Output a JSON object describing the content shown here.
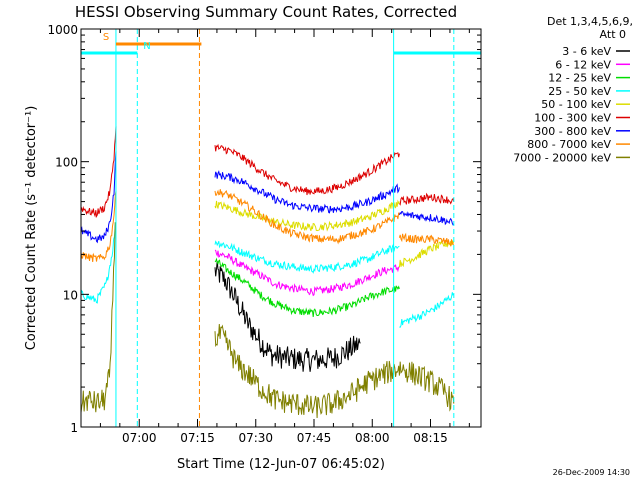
{
  "stamp": "26-Dec-2009 14:30",
  "legend": {
    "header_lines": [
      "Det 1,3,4,5,6,9,",
      "Att 0"
    ]
  },
  "chart_data": {
    "type": "line",
    "title": "HESSI Observing Summary Count Rates, Corrected",
    "xlabel": "Start Time (12-Jun-07 06:45:02)",
    "ylabel": "Corrected Count Rate (s⁻¹ detector⁻¹)",
    "x_units": "minutes after 06:45:02",
    "xlim": [
      0,
      103
    ],
    "ylim": [
      1,
      1000
    ],
    "y_scale": "log",
    "x_ticks": [
      {
        "x": 15,
        "label": "07:00"
      },
      {
        "x": 30,
        "label": "07:15"
      },
      {
        "x": 45,
        "label": "07:30"
      },
      {
        "x": 60,
        "label": "07:45"
      },
      {
        "x": 75,
        "label": "08:00"
      },
      {
        "x": 90,
        "label": "08:15"
      }
    ],
    "y_ticks": [
      {
        "y": 1,
        "label": "1"
      },
      {
        "y": 10,
        "label": "10"
      },
      {
        "y": 100,
        "label": "100"
      },
      {
        "y": 1000,
        "label": "1000"
      }
    ],
    "legend_position": "right",
    "series": [
      {
        "name": "3 - 6 keV",
        "color": "#000000",
        "segments": [
          [
            [
              34.5,
              15
            ],
            [
              37,
              13
            ],
            [
              40,
              9
            ],
            [
              43,
              6
            ],
            [
              46,
              4.5
            ],
            [
              49,
              3.5
            ],
            [
              53,
              3.3
            ],
            [
              57,
              3.2
            ],
            [
              61,
              3.2
            ],
            [
              65,
              3.3
            ],
            [
              69,
              3.8
            ],
            [
              72,
              4.3
            ]
          ]
        ]
      },
      {
        "name": "6 - 12 keV",
        "color": "#ff00ff",
        "segments": [
          [
            [
              34.5,
              21
            ],
            [
              38,
              19
            ],
            [
              42,
              16
            ],
            [
              46,
              14
            ],
            [
              50,
              12
            ],
            [
              55,
              11
            ],
            [
              60,
              10.5
            ],
            [
              65,
              11
            ],
            [
              70,
              12
            ],
            [
              74,
              13.5
            ],
            [
              78,
              15
            ],
            [
              82,
              16
            ]
          ]
        ]
      },
      {
        "name": "12 - 25 keV",
        "color": "#00dd00",
        "segments": [
          [
            [
              34.5,
              18
            ],
            [
              38,
              15
            ],
            [
              42,
              12.5
            ],
            [
              46,
              10
            ],
            [
              50,
              8.5
            ],
            [
              55,
              7.5
            ],
            [
              60,
              7.2
            ],
            [
              65,
              7.5
            ],
            [
              70,
              8.3
            ],
            [
              74,
              9.5
            ],
            [
              78,
              10.5
            ],
            [
              82,
              11
            ]
          ]
        ]
      },
      {
        "name": "25 - 50 keV",
        "color": "#00ffff",
        "segments": [
          [
            [
              0,
              10
            ],
            [
              4,
              9
            ],
            [
              6.5,
              12
            ],
            [
              8,
              20
            ],
            [
              9,
              35
            ]
          ],
          [
            [
              34.5,
              25
            ],
            [
              38,
              23
            ],
            [
              42,
              20.5
            ],
            [
              46,
              18.5
            ],
            [
              50,
              17
            ],
            [
              55,
              16
            ],
            [
              60,
              15.5
            ],
            [
              65,
              16
            ],
            [
              70,
              17
            ],
            [
              74,
              18.5
            ],
            [
              78,
              21
            ],
            [
              82,
              23
            ]
          ],
          [
            [
              82,
              6
            ],
            [
              85,
              6.5
            ],
            [
              88,
              7
            ],
            [
              91,
              7.8
            ],
            [
              94,
              9
            ],
            [
              96,
              10
            ]
          ]
        ]
      },
      {
        "name": "50 - 100 keV",
        "color": "#dddd00",
        "segments": [
          [
            [
              34.5,
              48
            ],
            [
              38,
              45
            ],
            [
              42,
              41
            ],
            [
              46,
              38
            ],
            [
              50,
              35
            ],
            [
              55,
              33
            ],
            [
              60,
              32
            ],
            [
              65,
              33
            ],
            [
              70,
              35
            ],
            [
              74,
              38
            ],
            [
              78,
              43
            ],
            [
              82,
              50
            ]
          ],
          [
            [
              82,
              17
            ],
            [
              86,
              19
            ],
            [
              90,
              22
            ],
            [
              94,
              24
            ],
            [
              96,
              25
            ]
          ]
        ]
      },
      {
        "name": "100 - 300 keV",
        "color": "#dd0000",
        "segments": [
          [
            [
              0,
              45
            ],
            [
              2,
              42
            ],
            [
              4,
              41
            ],
            [
              6,
              45
            ],
            [
              7.5,
              60
            ],
            [
              8.5,
              110
            ],
            [
              9,
              185
            ]
          ],
          [
            [
              34.5,
              128
            ],
            [
              38,
              122
            ],
            [
              41,
              110
            ],
            [
              44,
              95
            ],
            [
              47,
              82
            ],
            [
              50,
              72
            ],
            [
              54,
              64
            ],
            [
              58,
              60
            ],
            [
              62,
              60
            ],
            [
              66,
              64
            ],
            [
              70,
              72
            ],
            [
              74,
              83
            ],
            [
              78,
              98
            ],
            [
              81,
              112
            ],
            [
              82,
              115
            ]
          ],
          [
            [
              82,
              50
            ],
            [
              86,
              52
            ],
            [
              90,
              54
            ],
            [
              94,
              52
            ],
            [
              96,
              50
            ]
          ]
        ]
      },
      {
        "name": "300 - 800 keV",
        "color": "#0000ff",
        "segments": [
          [
            [
              0,
              30
            ],
            [
              2,
              28
            ],
            [
              4,
              26
            ],
            [
              6,
              27
            ],
            [
              7.5,
              35
            ],
            [
              8.5,
              60
            ],
            [
              9,
              120
            ]
          ],
          [
            [
              34.5,
              80
            ],
            [
              38,
              77
            ],
            [
              41,
              72
            ],
            [
              44,
              65
            ],
            [
              47,
              58
            ],
            [
              50,
              52
            ],
            [
              54,
              47
            ],
            [
              58,
              45
            ],
            [
              62,
              44
            ],
            [
              66,
              44
            ],
            [
              70,
              46
            ],
            [
              74,
              50
            ],
            [
              78,
              56
            ],
            [
              81,
              62
            ],
            [
              82,
              64
            ]
          ],
          [
            [
              82,
              40
            ],
            [
              86,
              39
            ],
            [
              90,
              38
            ],
            [
              94,
              36
            ],
            [
              96,
              34
            ]
          ]
        ]
      },
      {
        "name": "800 - 7000 keV",
        "color": "#ff8800",
        "segments": [
          [
            [
              0,
              20
            ],
            [
              2,
              19
            ],
            [
              4,
              18.5
            ],
            [
              6,
              19
            ],
            [
              7.5,
              24
            ],
            [
              8.5,
              40
            ],
            [
              9,
              60
            ]
          ],
          [
            [
              34.5,
              60
            ],
            [
              38,
              56
            ],
            [
              41,
              50
            ],
            [
              44,
              44
            ],
            [
              47,
              38
            ],
            [
              50,
              33
            ],
            [
              54,
              29
            ],
            [
              58,
              27
            ],
            [
              62,
              26
            ],
            [
              66,
              26
            ],
            [
              70,
              28
            ],
            [
              74,
              30
            ],
            [
              78,
              34
            ],
            [
              81,
              38
            ],
            [
              82,
              40
            ]
          ],
          [
            [
              82,
              27
            ],
            [
              86,
              26
            ],
            [
              90,
              26
            ],
            [
              94,
              25
            ],
            [
              96,
              24
            ]
          ]
        ]
      },
      {
        "name": "7000 - 20000 keV",
        "color": "#808000",
        "segments": [
          [
            [
              0,
              1.5
            ],
            [
              2,
              1.6
            ],
            [
              4,
              1.5
            ],
            [
              6,
              1.6
            ],
            [
              7.5,
              2.5
            ],
            [
              8.2,
              10
            ],
            [
              8.8,
              35
            ]
          ],
          [
            [
              34.5,
              4.5
            ],
            [
              36,
              5
            ],
            [
              38,
              4
            ],
            [
              40,
              3
            ],
            [
              43,
              2.5
            ],
            [
              46,
              2
            ],
            [
              50,
              1.6
            ],
            [
              55,
              1.5
            ],
            [
              60,
              1.4
            ],
            [
              65,
              1.5
            ],
            [
              70,
              1.8
            ],
            [
              74,
              2.2
            ],
            [
              78,
              2.5
            ],
            [
              82,
              2.8
            ],
            [
              86,
              2.5
            ],
            [
              90,
              2.2
            ],
            [
              94,
              1.8
            ],
            [
              96,
              1.5
            ]
          ]
        ]
      }
    ],
    "markers": [
      {
        "x": 9,
        "style": "solid",
        "color": "#00ffff"
      },
      {
        "x": 14.5,
        "style": "dashed",
        "color": "#00ffff"
      },
      {
        "x": 30.5,
        "style": "dashed",
        "color": "#ff8800"
      },
      {
        "x": 80.5,
        "style": "solid",
        "color": "#00ffff"
      },
      {
        "x": 96,
        "style": "dashed",
        "color": "#00ffff"
      }
    ],
    "flags": [
      {
        "label": "S",
        "color": "#ff8800",
        "x_start": 9,
        "x_end": 31,
        "y": 770
      },
      {
        "label": "N",
        "color": "#00ffff",
        "x_start": 0,
        "x_end": 14.5,
        "y": 660
      },
      {
        "label": "",
        "color": "#00ffff",
        "x_start": 80.5,
        "x_end": 103,
        "y": 660
      }
    ]
  }
}
